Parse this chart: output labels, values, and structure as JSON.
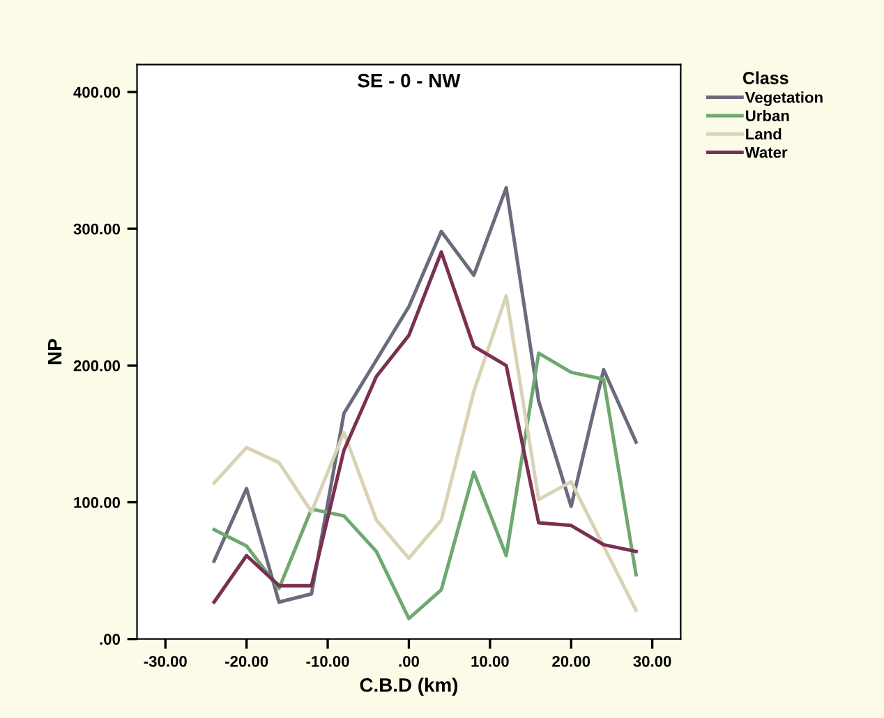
{
  "chart_data": {
    "type": "line",
    "title": "SE - 0 - NW",
    "xlabel": "C.B.D (km)",
    "ylabel": "NP",
    "legend_title": "Class",
    "x": [
      -24,
      -20,
      -16,
      -12,
      -8,
      -4,
      0,
      4,
      8,
      12,
      16,
      20,
      24,
      28
    ],
    "series": [
      {
        "name": "Vegetation",
        "color": "#6b6b7d",
        "values": [
          57,
          110,
          27,
          33,
          165,
          204,
          243,
          298,
          266,
          330,
          174,
          97,
          197,
          144
        ]
      },
      {
        "name": "Urban",
        "color": "#6fa870",
        "values": [
          80,
          68,
          37,
          95,
          90,
          64,
          15,
          36,
          122,
          61,
          209,
          195,
          190,
          47
        ]
      },
      {
        "name": "Land",
        "color": "#d9d3b5",
        "values": [
          114,
          140,
          129,
          93,
          151,
          87,
          59,
          87,
          181,
          251,
          102,
          115,
          68,
          21
        ]
      },
      {
        "name": "Water",
        "color": "#7a3050",
        "values": [
          27,
          61,
          39,
          39,
          138,
          192,
          222,
          283,
          214,
          200,
          85,
          83,
          69,
          64
        ]
      }
    ],
    "xlim": [
      -33.5,
      33.5
    ],
    "ylim": [
      0,
      420
    ],
    "xticks": [
      {
        "value": -30,
        "label": "-30.00"
      },
      {
        "value": -20,
        "label": "-20.00"
      },
      {
        "value": -10,
        "label": "-10.00"
      },
      {
        "value": 0,
        "label": ".00"
      },
      {
        "value": 10,
        "label": "10.00"
      },
      {
        "value": 20,
        "label": "20.00"
      },
      {
        "value": 30,
        "label": "30.00"
      }
    ],
    "yticks": [
      {
        "value": 0,
        "label": ".00"
      },
      {
        "value": 100,
        "label": "100.00"
      },
      {
        "value": 200,
        "label": "200.00"
      },
      {
        "value": 300,
        "label": "300.00"
      },
      {
        "value": 400,
        "label": "400.00"
      }
    ],
    "legend": "right",
    "grid": false,
    "marker": "none",
    "line_style": "solid"
  }
}
